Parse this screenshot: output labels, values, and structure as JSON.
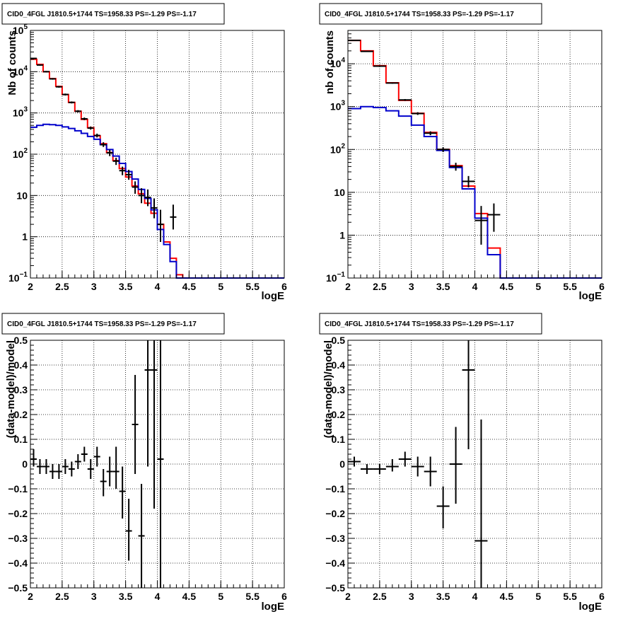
{
  "chart_data": [
    {
      "type": "line",
      "panel": "top-left",
      "title": "CID0_4FGL J1810.5+1744 TS=1958.33 PS=-1.29 PS=-1.17",
      "xlabel": "logE",
      "ylabel": "Nb of counts",
      "log_y": true,
      "xlim": [
        2,
        6
      ],
      "ylim": [
        0.1,
        100000
      ],
      "x_ticks": [
        "2",
        "2.5",
        "3",
        "3.5",
        "4",
        "4.5",
        "5",
        "5.5",
        "6"
      ],
      "y_ticks": [
        {
          "v": 0.1,
          "base": "10",
          "exp": "−1"
        },
        {
          "v": 1,
          "label": "1"
        },
        {
          "v": 10,
          "label": "10"
        },
        {
          "v": 100,
          "base": "10",
          "exp": "2"
        },
        {
          "v": 1000,
          "base": "10",
          "exp": "3"
        },
        {
          "v": 10000,
          "base": "10",
          "exp": "4"
        },
        {
          "v": 100000,
          "base": "10",
          "exp": "5"
        }
      ],
      "grid": true,
      "bin_edges": [
        2.0,
        2.1,
        2.2,
        2.3,
        2.4,
        2.5,
        2.6,
        2.7,
        2.8,
        2.9,
        3.0,
        3.1,
        3.2,
        3.3,
        3.4,
        3.5,
        3.6,
        3.7,
        3.8,
        3.9,
        4.0,
        4.1,
        4.2,
        4.3,
        4.4,
        4.5,
        4.6,
        4.7,
        4.8,
        4.9,
        5.0,
        5.1,
        5.2,
        5.3,
        5.4,
        5.5,
        5.6,
        5.7,
        5.8,
        5.9,
        6.0
      ],
      "series": [
        {
          "name": "",
          "color": "#ff0000",
          "style": "step",
          "values": [
            20000,
            15000,
            10000,
            6800,
            4400,
            2800,
            1800,
            1100,
            700,
            440,
            280,
            180,
            110,
            70,
            45,
            28,
            17,
            11,
            6.5,
            3.7,
            2.0,
            0.75,
            0.3,
            0.12,
            0.1,
            0.1,
            0.1,
            0.1,
            0.1,
            0.1,
            0.1,
            0.1,
            0.1,
            0.1,
            0.1,
            0.1,
            0.1,
            0.1,
            0.1,
            0.1
          ]
        },
        {
          "name": "",
          "color": "#0000cc",
          "style": "step",
          "values": [
            450,
            500,
            530,
            520,
            500,
            460,
            420,
            370,
            320,
            270,
            230,
            170,
            130,
            90,
            60,
            38,
            25,
            14,
            8.5,
            4.5,
            1.5,
            0.65,
            0.25,
            0.1,
            0.1,
            0.1,
            0.1,
            0.1,
            0.1,
            0.1,
            0.1,
            0.1,
            0.1,
            0.1,
            0.1,
            0.1,
            0.1,
            0.1,
            0.1,
            0.1
          ]
        }
      ],
      "points": [
        {
          "x": 2.05,
          "y": 21000,
          "xerr": 0.05,
          "ylo": 20500,
          "yhi": 21500
        },
        {
          "x": 2.15,
          "y": 14500,
          "xerr": 0.05,
          "ylo": 14000,
          "yhi": 15000
        },
        {
          "x": 2.25,
          "y": 10000,
          "xerr": 0.05,
          "ylo": 9600,
          "yhi": 10400
        },
        {
          "x": 2.35,
          "y": 6700,
          "xerr": 0.05,
          "ylo": 6400,
          "yhi": 7000
        },
        {
          "x": 2.45,
          "y": 4300,
          "xerr": 0.05,
          "ylo": 4100,
          "yhi": 4500
        },
        {
          "x": 2.55,
          "y": 2800,
          "xerr": 0.05,
          "ylo": 2650,
          "yhi": 2950
        },
        {
          "x": 2.65,
          "y": 1800,
          "xerr": 0.05,
          "ylo": 1700,
          "yhi": 1900
        },
        {
          "x": 2.75,
          "y": 1100,
          "xerr": 0.05,
          "ylo": 1030,
          "yhi": 1170
        },
        {
          "x": 2.85,
          "y": 720,
          "xerr": 0.05,
          "ylo": 670,
          "yhi": 775
        },
        {
          "x": 2.95,
          "y": 430,
          "xerr": 0.05,
          "ylo": 395,
          "yhi": 470
        },
        {
          "x": 3.05,
          "y": 285,
          "xerr": 0.05,
          "ylo": 255,
          "yhi": 315
        },
        {
          "x": 3.15,
          "y": 170,
          "xerr": 0.05,
          "ylo": 150,
          "yhi": 195
        },
        {
          "x": 3.25,
          "y": 108,
          "xerr": 0.05,
          "ylo": 90,
          "yhi": 128
        },
        {
          "x": 3.35,
          "y": 68,
          "xerr": 0.05,
          "ylo": 55,
          "yhi": 82
        },
        {
          "x": 3.45,
          "y": 40,
          "xerr": 0.05,
          "ylo": 31,
          "yhi": 50
        },
        {
          "x": 3.55,
          "y": 32,
          "xerr": 0.05,
          "ylo": 24,
          "yhi": 42
        },
        {
          "x": 3.65,
          "y": 16,
          "xerr": 0.05,
          "ylo": 11,
          "yhi": 22
        },
        {
          "x": 3.75,
          "y": 10,
          "xerr": 0.05,
          "ylo": 6.5,
          "yhi": 15
        },
        {
          "x": 3.85,
          "y": 9,
          "xerr": 0.05,
          "ylo": 5.5,
          "yhi": 14
        },
        {
          "x": 3.95,
          "y": 5,
          "xerr": 0.05,
          "ylo": 2.8,
          "yhi": 8.5
        },
        {
          "x": 4.05,
          "y": 2,
          "xerr": 0.05,
          "ylo": 0.75,
          "yhi": 4.5
        },
        {
          "x": 4.25,
          "y": 3,
          "xerr": 0.05,
          "ylo": 1.5,
          "yhi": 6
        }
      ]
    },
    {
      "type": "line",
      "panel": "top-right",
      "title": "CID0_4FGL J1810.5+1744 TS=1958.33 PS=-1.29 PS=-1.17",
      "xlabel": "logE",
      "ylabel": "nb of counts",
      "log_y": true,
      "xlim": [
        2,
        6
      ],
      "ylim": [
        0.1,
        60000
      ],
      "x_ticks": [
        "2",
        "2.5",
        "3",
        "3.5",
        "4",
        "4.5",
        "5",
        "5.5",
        "6"
      ],
      "y_ticks": [
        {
          "v": 0.1,
          "base": "10",
          "exp": "−1"
        },
        {
          "v": 1,
          "label": "1"
        },
        {
          "v": 10,
          "label": "10"
        },
        {
          "v": 100,
          "base": "10",
          "exp": "2"
        },
        {
          "v": 1000,
          "base": "10",
          "exp": "3"
        },
        {
          "v": 10000,
          "base": "10",
          "exp": "4"
        }
      ],
      "grid": true,
      "bin_edges": [
        2.0,
        2.2,
        2.4,
        2.6,
        2.8,
        3.0,
        3.2,
        3.4,
        3.6,
        3.8,
        4.0,
        4.2,
        4.4,
        4.6,
        4.8,
        5.0,
        5.2,
        5.4,
        5.6,
        5.8,
        6.0
      ],
      "series": [
        {
          "name": "",
          "color": "#ff0000",
          "style": "step",
          "values": [
            35000,
            20000,
            9000,
            3600,
            1400,
            700,
            250,
            100,
            42,
            14,
            3.2,
            0.5,
            0.1,
            0.1,
            0.1,
            0.1,
            0.1,
            0.1,
            0.1,
            0.1
          ]
        },
        {
          "name": "",
          "color": "#0000cc",
          "style": "step",
          "values": [
            900,
            1000,
            950,
            800,
            600,
            370,
            200,
            95,
            38,
            12,
            2.5,
            0.35,
            0.1,
            0.1,
            0.1,
            0.1,
            0.1,
            0.1,
            0.1,
            0.1
          ]
        }
      ],
      "points": [
        {
          "x": 2.1,
          "y": 35000,
          "xerr": 0.1,
          "ylo": 34500,
          "yhi": 35500
        },
        {
          "x": 2.3,
          "y": 19500,
          "xerr": 0.1,
          "ylo": 19100,
          "yhi": 19900
        },
        {
          "x": 2.5,
          "y": 8800,
          "xerr": 0.1,
          "ylo": 8550,
          "yhi": 9050
        },
        {
          "x": 2.7,
          "y": 3550,
          "xerr": 0.1,
          "ylo": 3420,
          "yhi": 3680
        },
        {
          "x": 2.9,
          "y": 1430,
          "xerr": 0.1,
          "ylo": 1360,
          "yhi": 1500
        },
        {
          "x": 3.1,
          "y": 690,
          "xerr": 0.1,
          "ylo": 640,
          "yhi": 740
        },
        {
          "x": 3.3,
          "y": 240,
          "xerr": 0.1,
          "ylo": 215,
          "yhi": 265
        },
        {
          "x": 3.5,
          "y": 100,
          "xerr": 0.1,
          "ylo": 87,
          "yhi": 113
        },
        {
          "x": 3.7,
          "y": 40,
          "xerr": 0.1,
          "ylo": 32,
          "yhi": 49
        },
        {
          "x": 3.9,
          "y": 18,
          "xerr": 0.1,
          "ylo": 13,
          "yhi": 24
        },
        {
          "x": 4.1,
          "y": 2.2,
          "xerr": 0.1,
          "ylo": 0.6,
          "yhi": 4.8
        },
        {
          "x": 4.3,
          "y": 3,
          "xerr": 0.1,
          "ylo": 1.2,
          "yhi": 5.5
        }
      ]
    },
    {
      "type": "scatter",
      "panel": "bottom-left",
      "title": "CID0_4FGL J1810.5+1744 TS=1958.33 PS=-1.29 PS=-1.17",
      "xlabel": "logE",
      "ylabel": "(data-model)/model",
      "log_y": false,
      "xlim": [
        2,
        6
      ],
      "ylim": [
        -0.5,
        0.5
      ],
      "x_ticks": [
        "2",
        "2.5",
        "3",
        "3.5",
        "4",
        "4.5",
        "5",
        "5.5",
        "6"
      ],
      "y_ticks": [
        {
          "v": -0.5,
          "label": "−0.5"
        },
        {
          "v": -0.4,
          "label": "−0.4"
        },
        {
          "v": -0.3,
          "label": "−0.3"
        },
        {
          "v": -0.2,
          "label": "−0.2"
        },
        {
          "v": -0.1,
          "label": "−0.1"
        },
        {
          "v": 0,
          "label": "0"
        },
        {
          "v": 0.1,
          "label": "0.1"
        },
        {
          "v": 0.2,
          "label": "0.2"
        },
        {
          "v": 0.3,
          "label": "0.3"
        },
        {
          "v": 0.4,
          "label": "0.4"
        },
        {
          "v": 0.5,
          "label": "0.5"
        }
      ],
      "grid": true,
      "series": [],
      "points": [
        {
          "x": 2.05,
          "y": 0.02,
          "xerr": 0.05,
          "ylo": -0.01,
          "yhi": 0.06
        },
        {
          "x": 2.15,
          "y": -0.01,
          "xerr": 0.05,
          "ylo": -0.04,
          "yhi": 0.02
        },
        {
          "x": 2.25,
          "y": -0.01,
          "xerr": 0.05,
          "ylo": -0.04,
          "yhi": 0.02
        },
        {
          "x": 2.35,
          "y": -0.03,
          "xerr": 0.05,
          "ylo": -0.06,
          "yhi": 0.0
        },
        {
          "x": 2.45,
          "y": -0.03,
          "xerr": 0.05,
          "ylo": -0.06,
          "yhi": 0.0
        },
        {
          "x": 2.55,
          "y": -0.01,
          "xerr": 0.05,
          "ylo": -0.04,
          "yhi": 0.02
        },
        {
          "x": 2.65,
          "y": -0.02,
          "xerr": 0.05,
          "ylo": -0.05,
          "yhi": 0.01
        },
        {
          "x": 2.75,
          "y": 0.01,
          "xerr": 0.05,
          "ylo": -0.02,
          "yhi": 0.04
        },
        {
          "x": 2.85,
          "y": 0.04,
          "xerr": 0.05,
          "ylo": 0.01,
          "yhi": 0.07
        },
        {
          "x": 2.95,
          "y": -0.02,
          "xerr": 0.05,
          "ylo": -0.06,
          "yhi": 0.02
        },
        {
          "x": 3.05,
          "y": 0.03,
          "xerr": 0.05,
          "ylo": -0.01,
          "yhi": 0.07
        },
        {
          "x": 3.15,
          "y": -0.07,
          "xerr": 0.05,
          "ylo": -0.13,
          "yhi": -0.02
        },
        {
          "x": 3.25,
          "y": -0.03,
          "xerr": 0.05,
          "ylo": -0.09,
          "yhi": 0.03
        },
        {
          "x": 3.35,
          "y": -0.03,
          "xerr": 0.05,
          "ylo": -0.1,
          "yhi": 0.07
        },
        {
          "x": 3.45,
          "y": -0.11,
          "xerr": 0.05,
          "ylo": -0.22,
          "yhi": -0.01
        },
        {
          "x": 3.55,
          "y": -0.27,
          "xerr": 0.05,
          "ylo": -0.39,
          "yhi": -0.14
        },
        {
          "x": 3.65,
          "y": 0.16,
          "xerr": 0.05,
          "ylo": -0.04,
          "yhi": 0.36
        },
        {
          "x": 3.75,
          "y": -0.29,
          "xerr": 0.05,
          "ylo": -0.5,
          "yhi": -0.08
        },
        {
          "x": 3.85,
          "y": 0.38,
          "xerr": 0.05,
          "ylo": -0.01,
          "yhi": 0.5
        },
        {
          "x": 3.95,
          "y": 0.38,
          "xerr": 0.05,
          "ylo": -0.18,
          "yhi": 0.5
        },
        {
          "x": 4.05,
          "y": 0.02,
          "xerr": 0.05,
          "ylo": -0.5,
          "yhi": 0.5
        }
      ]
    },
    {
      "type": "scatter",
      "panel": "bottom-right",
      "title": "CID0_4FGL J1810.5+1744 TS=1958.33 PS=-1.29 PS=-1.17",
      "xlabel": "logE",
      "ylabel": "(data-model)/model",
      "log_y": false,
      "xlim": [
        2,
        6
      ],
      "ylim": [
        -0.5,
        0.5
      ],
      "x_ticks": [
        "2",
        "2.5",
        "3",
        "3.5",
        "4",
        "4.5",
        "5",
        "5.5",
        "6"
      ],
      "y_ticks": [
        {
          "v": -0.5,
          "label": "−0.5"
        },
        {
          "v": -0.4,
          "label": "−0.4"
        },
        {
          "v": -0.3,
          "label": "−0.3"
        },
        {
          "v": -0.2,
          "label": "−0.2"
        },
        {
          "v": -0.1,
          "label": "−0.1"
        },
        {
          "v": 0,
          "label": "0"
        },
        {
          "v": 0.1,
          "label": "0.1"
        },
        {
          "v": 0.2,
          "label": "0.2"
        },
        {
          "v": 0.3,
          "label": "0.3"
        },
        {
          "v": 0.4,
          "label": "0.4"
        },
        {
          "v": 0.5,
          "label": "0.5"
        }
      ],
      "grid": true,
      "series": [],
      "points": [
        {
          "x": 2.1,
          "y": 0.01,
          "xerr": 0.1,
          "ylo": -0.01,
          "yhi": 0.03
        },
        {
          "x": 2.3,
          "y": -0.02,
          "xerr": 0.1,
          "ylo": -0.04,
          "yhi": 0.0
        },
        {
          "x": 2.5,
          "y": -0.02,
          "xerr": 0.1,
          "ylo": -0.04,
          "yhi": 0.0
        },
        {
          "x": 2.7,
          "y": -0.01,
          "xerr": 0.1,
          "ylo": -0.03,
          "yhi": 0.02
        },
        {
          "x": 2.9,
          "y": 0.02,
          "xerr": 0.1,
          "ylo": -0.01,
          "yhi": 0.05
        },
        {
          "x": 3.1,
          "y": -0.01,
          "xerr": 0.1,
          "ylo": -0.05,
          "yhi": 0.03
        },
        {
          "x": 3.3,
          "y": -0.03,
          "xerr": 0.1,
          "ylo": -0.09,
          "yhi": 0.03
        },
        {
          "x": 3.5,
          "y": -0.17,
          "xerr": 0.1,
          "ylo": -0.26,
          "yhi": -0.09
        },
        {
          "x": 3.7,
          "y": 0.0,
          "xerr": 0.1,
          "ylo": -0.16,
          "yhi": 0.15
        },
        {
          "x": 3.9,
          "y": 0.38,
          "xerr": 0.1,
          "ylo": 0.06,
          "yhi": 0.5
        },
        {
          "x": 4.1,
          "y": -0.31,
          "xerr": 0.1,
          "ylo": -0.5,
          "yhi": 0.18
        }
      ]
    }
  ]
}
